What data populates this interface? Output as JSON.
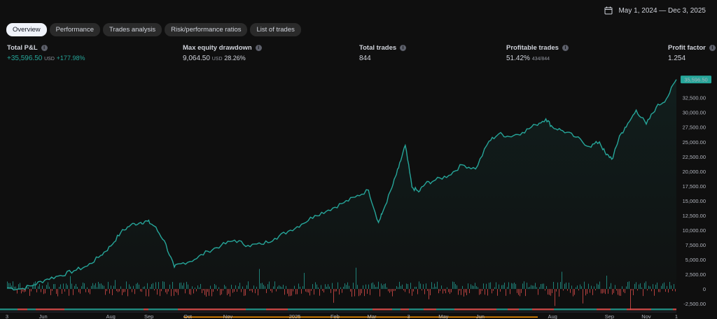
{
  "header": {
    "date_range": "May 1, 2024 — Dec 3, 2025"
  },
  "tabs": [
    {
      "label": "Overview",
      "active": true
    },
    {
      "label": "Performance",
      "active": false
    },
    {
      "label": "Trades analysis",
      "active": false
    },
    {
      "label": "Risk/performance ratios",
      "active": false
    },
    {
      "label": "List of trades",
      "active": false
    }
  ],
  "stats": {
    "total_pnl": {
      "label": "Total P&L",
      "value": "+35,596.50",
      "unit": "USD",
      "sub": "+177.98%"
    },
    "max_drawdown": {
      "label": "Max equity drawdown",
      "value": "9,064.50",
      "unit": "USD",
      "sub": "28.26%"
    },
    "total_trades": {
      "label": "Total trades",
      "value": "844"
    },
    "profitable": {
      "label": "Profitable trades",
      "value": "51.42%",
      "sub": "434/844"
    },
    "profit_factor": {
      "label": "Profit factor",
      "value": "1.254"
    }
  },
  "colors": {
    "equity": "#26a69a",
    "loss": "#ef5350",
    "win_bar": "#26a69a",
    "highlight": "#ff9800"
  },
  "chart_data": {
    "type": "line",
    "ylim": [
      -3200,
      36500
    ],
    "y_ticks": [
      -2500,
      0,
      2500,
      5000,
      7500,
      10000,
      12500,
      15000,
      17500,
      20000,
      22500,
      25000,
      27500,
      30000,
      32500
    ],
    "y_tick_labels": [
      "-2,500.00",
      "0",
      "2,500.00",
      "5,000.00",
      "7,500.00",
      "10,000.00",
      "12,500.00",
      "15,000.00",
      "17,500.00",
      "20,000.00",
      "22,500.00",
      "25,000.00",
      "27,500.00",
      "30,000.00",
      "32,500.00"
    ],
    "last_value_label": "35,596.50",
    "x_ticks": [
      {
        "label": "3",
        "t": 0.0
      },
      {
        "label": "Jun",
        "t": 0.054
      },
      {
        "label": "Aug",
        "t": 0.155
      },
      {
        "label": "Sep",
        "t": 0.212
      },
      {
        "label": "Oct",
        "t": 0.27
      },
      {
        "label": "Nov",
        "t": 0.33
      },
      {
        "label": "2025",
        "t": 0.43
      },
      {
        "label": "Feb",
        "t": 0.49
      },
      {
        "label": "Mar",
        "t": 0.545
      },
      {
        "label": "3",
        "t": 0.6
      },
      {
        "label": "May",
        "t": 0.652
      },
      {
        "label": "Jun",
        "t": 0.707
      },
      {
        "label": "Aug",
        "t": 0.815
      },
      {
        "label": "Sep",
        "t": 0.9
      },
      {
        "label": "Nov",
        "t": 0.955
      },
      {
        "label": "1",
        "t": 1.0
      }
    ],
    "series": [
      {
        "x": [
          0,
          0.02,
          0.04,
          0.06,
          0.08,
          0.1,
          0.12,
          0.14,
          0.155,
          0.17,
          0.185,
          0.2,
          0.21,
          0.22,
          0.235,
          0.25,
          0.26,
          0.28,
          0.3,
          0.32,
          0.34,
          0.36,
          0.38,
          0.4,
          0.42,
          0.44,
          0.46,
          0.48,
          0.5,
          0.52,
          0.54,
          0.555,
          0.56,
          0.575,
          0.585,
          0.595,
          0.605,
          0.615,
          0.625,
          0.64,
          0.66,
          0.68,
          0.7,
          0.72,
          0.735,
          0.75,
          0.77,
          0.79,
          0.805,
          0.815,
          0.83,
          0.85,
          0.87,
          0.885,
          0.895,
          0.905,
          0.915,
          0.925,
          0.94,
          0.955,
          0.97,
          0.985,
          1.0
        ],
        "values": [
          200,
          0,
          700,
          1700,
          2300,
          3100,
          3900,
          5700,
          7300,
          9600,
          10900,
          11300,
          11500,
          10700,
          8200,
          3700,
          4300,
          5000,
          6400,
          7400,
          8300,
          7400,
          7600,
          8600,
          9800,
          11000,
          12500,
          13400,
          14500,
          15600,
          16800,
          11300,
          12700,
          17200,
          20600,
          24400,
          17300,
          16500,
          17900,
          18500,
          19300,
          21100,
          20400,
          25100,
          26400,
          25900,
          26600,
          27900,
          28900,
          27500,
          26900,
          25800,
          24200,
          25000,
          22800,
          22200,
          26000,
          27500,
          30400,
          28000,
          30900,
          32300,
          35596.5
        ]
      }
    ]
  }
}
